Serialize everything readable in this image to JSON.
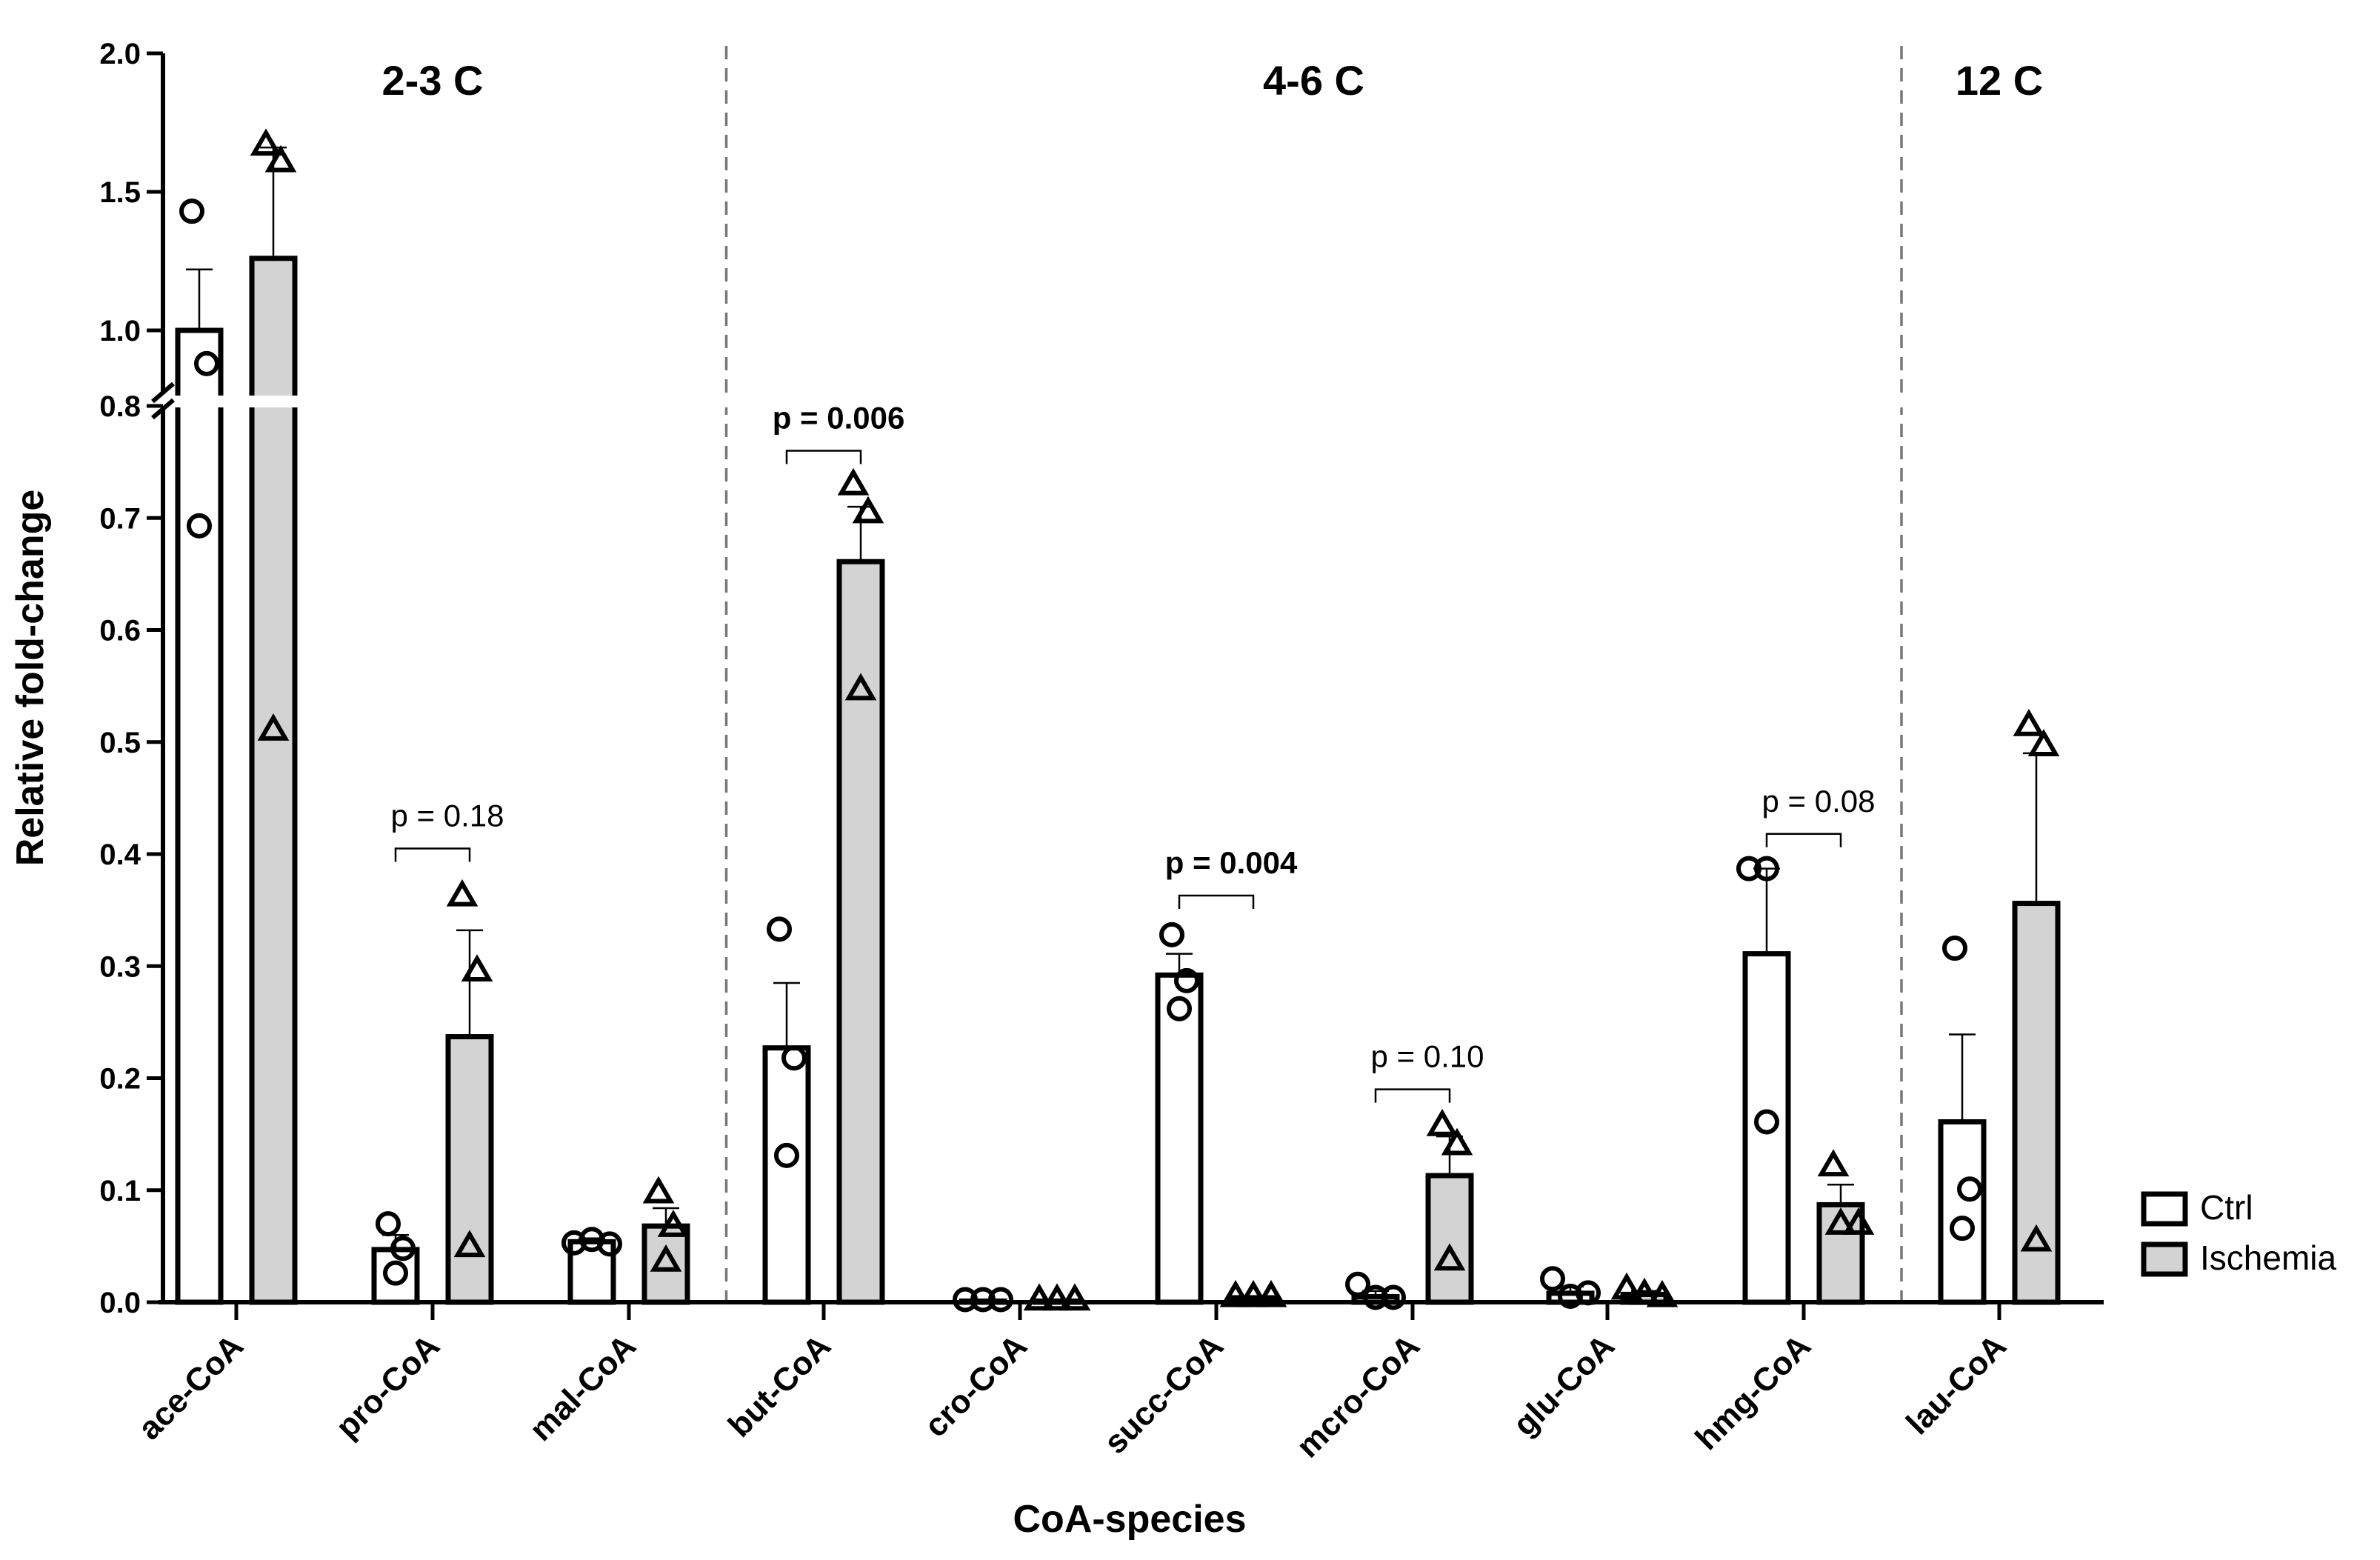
{
  "chart_data": {
    "type": "bar",
    "title": "",
    "xlabel": "CoA-species",
    "ylabel": "Relative fold-change",
    "categories": [
      "ace-CoA",
      "pro-CoA",
      "mal-CoA",
      "but-CoA",
      "cro-CoA",
      "succ-CoA",
      "mcro-CoA",
      "glu-CoA",
      "hmg-CoA",
      "lau-CoA"
    ],
    "ylim": [
      0,
      2.0
    ],
    "axis_break": [
      0.8,
      0.9
    ],
    "y_ticks_lower": [
      {
        "value": 0.0,
        "label": "0.0"
      },
      {
        "value": 0.1,
        "label": "0.1"
      },
      {
        "value": 0.2,
        "label": "0.2"
      },
      {
        "value": 0.3,
        "label": "0.3"
      },
      {
        "value": 0.4,
        "label": "0.4"
      },
      {
        "value": 0.5,
        "label": "0.5"
      },
      {
        "value": 0.6,
        "label": "0.6"
      },
      {
        "value": 0.7,
        "label": "0.7"
      },
      {
        "value": 0.8,
        "label": "0.8"
      }
    ],
    "y_ticks_upper": [
      {
        "value": 1.0,
        "label": "1.0"
      },
      {
        "value": 1.5,
        "label": "1.5"
      },
      {
        "value": 2.0,
        "label": "2.0"
      }
    ],
    "series": [
      {
        "name": "Ctrl",
        "color": "#ffffff",
        "marker": "circle",
        "values": [
          1.0,
          0.047,
          0.054,
          0.227,
          0.001,
          0.292,
          0.005,
          0.008,
          0.311,
          0.161
        ],
        "errors": [
          0.22,
          0.013,
          0.003,
          0.058,
          0.001,
          0.019,
          0.005,
          0.006,
          0.076,
          0.078
        ],
        "points": [
          [
            1.43,
            0.88,
            0.693
          ],
          [
            0.07,
            0.048,
            0.026
          ],
          [
            0.053,
            0.056,
            0.052
          ],
          [
            0.333,
            0.218,
            0.131
          ],
          [
            0.001,
            0.001,
            0.001
          ],
          [
            0.328,
            0.287,
            0.262
          ],
          [
            0.016,
            0.003,
            0.003
          ],
          [
            0.021,
            0.004,
            0.007
          ],
          [
            0.387,
            0.387,
            0.161
          ],
          [
            0.316,
            0.101,
            0.066
          ]
        ]
      },
      {
        "name": "Ischemia",
        "color": "#d3d3d3",
        "marker": "triangle",
        "values": [
          1.26,
          0.237,
          0.068,
          0.661,
          0.001,
          0.004,
          0.113,
          0.007,
          0.087,
          0.356
        ],
        "errors": [
          0.4,
          0.095,
          0.016,
          0.049,
          0.001,
          0.001,
          0.035,
          0.003,
          0.018,
          0.134
        ],
        "points": [
          [
            1.67,
            1.61,
            0.511
          ],
          [
            0.363,
            0.296,
            0.05
          ],
          [
            0.098,
            0.068,
            0.037
          ],
          [
            0.73,
            0.705,
            0.547
          ],
          [
            0.001,
            0.001,
            0.001
          ],
          [
            0.004,
            0.004,
            0.004
          ],
          [
            0.158,
            0.141,
            0.038
          ],
          [
            0.012,
            0.006,
            0.004
          ],
          [
            0.122,
            0.07,
            0.07
          ],
          [
            0.515,
            0.497,
            0.055
          ]
        ]
      }
    ],
    "group_labels": [
      {
        "label": "2-3 C",
        "from": 0,
        "to": 2
      },
      {
        "label": "4-6 C",
        "from": 3,
        "to": 8
      },
      {
        "label": "12 C",
        "from": 9,
        "to": 9
      }
    ],
    "annotations": [
      {
        "category": 1,
        "text": "p = 0.18",
        "bold": false,
        "y": 0.405
      },
      {
        "category": 3,
        "text": "p = 0.006",
        "bold": true,
        "y": 0.76
      },
      {
        "category": 5,
        "text": "p = 0.004",
        "bold": true,
        "y": 0.363
      },
      {
        "category": 6,
        "text": "p = 0.10",
        "bold": false,
        "y": 0.19
      },
      {
        "category": 8,
        "text": "p = 0.08",
        "bold": false,
        "y": 0.418
      }
    ],
    "legend": {
      "position": "right",
      "entries": [
        {
          "label": "Ctrl",
          "color": "#ffffff"
        },
        {
          "label": "Ischemia",
          "color": "#d3d3d3"
        }
      ]
    }
  }
}
